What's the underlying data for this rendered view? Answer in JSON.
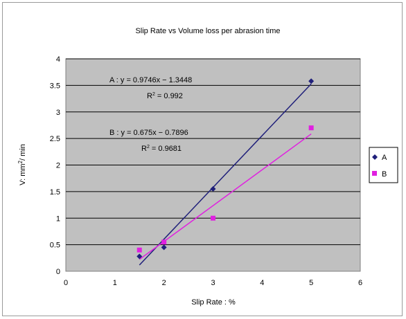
{
  "chart_data": {
    "type": "scatter",
    "title": "Slip  Rate vs Volume loss per abrasion time",
    "xlabel": "Slip Rate : %",
    "ylabel_parts": [
      "V: mm",
      "2",
      "/ min"
    ],
    "xlim": [
      0,
      6
    ],
    "ylim": [
      0,
      4
    ],
    "x_ticks": [
      "0",
      "1",
      "2",
      "3",
      "4",
      "5",
      "6"
    ],
    "y_ticks": [
      "0",
      "0.5",
      "1",
      "1.5",
      "2",
      "2.5",
      "3",
      "3.5",
      "4"
    ],
    "grid": "horizontal",
    "legend_placement": "right",
    "colors": {
      "A": "#1f1f7a",
      "B": "#e020e0",
      "plot_bg": "#c0c0c0",
      "grid": "#000000"
    },
    "series": [
      {
        "name": "A",
        "marker": "diamond",
        "points": [
          [
            1.5,
            0.28
          ],
          [
            2,
            0.45
          ],
          [
            3,
            1.55
          ],
          [
            5,
            3.58
          ]
        ],
        "trendline": {
          "slope": 0.9746,
          "intercept": -1.3448,
          "x_range": [
            1.5,
            5
          ]
        }
      },
      {
        "name": "B",
        "marker": "square",
        "points": [
          [
            1.5,
            0.4
          ],
          [
            2,
            0.55
          ],
          [
            3,
            1.0
          ],
          [
            5,
            2.7
          ]
        ],
        "trendline": {
          "slope": 0.675,
          "intercept": -0.7896,
          "x_range": [
            1.5,
            5
          ]
        }
      }
    ],
    "annotations": {
      "A_eq": "A : y = 0.9746x − 1.3448",
      "A_r2_pre": "R",
      "A_r2_sup": "2",
      "A_r2_post": " = 0.992",
      "B_eq": "B : y = 0.675x − 0.7896",
      "B_r2_pre": "R",
      "B_r2_sup": "2",
      "B_r2_post": " = 0.9681"
    }
  }
}
